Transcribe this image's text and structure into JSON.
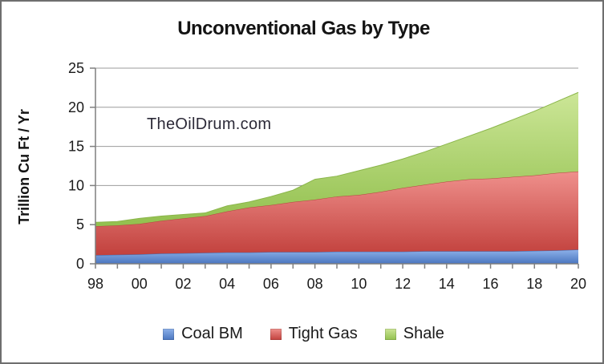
{
  "window": {
    "background": "#ffffff",
    "frame_border_color": "#6e6e6e"
  },
  "watermark": {
    "text": "TheOilDrum.com",
    "color": "#2c2a38"
  },
  "chart_data": {
    "type": "area",
    "stacked": true,
    "title": "Unconventional Gas by Type",
    "ylabel": "Trillion Cu Ft / Yr",
    "xlabel": "",
    "ylim": [
      0,
      25
    ],
    "y_ticks": [
      0,
      5,
      10,
      15,
      20,
      25
    ],
    "grid": true,
    "legend_position": "bottom",
    "x": [
      1998,
      1999,
      2000,
      2001,
      2002,
      2003,
      2004,
      2005,
      2006,
      2007,
      2008,
      2009,
      2010,
      2011,
      2012,
      2013,
      2014,
      2015,
      2016,
      2017,
      2018,
      2019,
      2020
    ],
    "x_tick_labels": [
      "98",
      "00",
      "02",
      "04",
      "06",
      "08",
      "10",
      "12",
      "14",
      "16",
      "18",
      "20"
    ],
    "x_label_every": 2,
    "series": [
      {
        "name": "Coal BM",
        "color": "#4f81bd",
        "gradient_top": "#8db1e9",
        "gradient_bottom": "#4a76bf",
        "edge_color": "#3f69ad",
        "values": [
          1.1,
          1.15,
          1.2,
          1.3,
          1.35,
          1.4,
          1.45,
          1.45,
          1.5,
          1.5,
          1.5,
          1.55,
          1.55,
          1.55,
          1.55,
          1.6,
          1.6,
          1.6,
          1.6,
          1.6,
          1.65,
          1.7,
          1.8
        ]
      },
      {
        "name": "Tight Gas",
        "color": "#c0504d",
        "gradient_top": "#ef908c",
        "gradient_bottom": "#c2413d",
        "edge_color": "#b4423e",
        "values": [
          3.7,
          3.75,
          3.9,
          4.2,
          4.45,
          4.7,
          5.25,
          5.75,
          6.0,
          6.4,
          6.7,
          7.05,
          7.25,
          7.65,
          8.15,
          8.5,
          8.9,
          9.2,
          9.3,
          9.5,
          9.65,
          9.9,
          10.0
        ]
      },
      {
        "name": "Shale",
        "color": "#9bbb59",
        "gradient_top": "#cce697",
        "gradient_bottom": "#92c04e",
        "edge_color": "#8ab54a",
        "values": [
          0.5,
          0.5,
          0.7,
          0.6,
          0.5,
          0.4,
          0.7,
          0.7,
          1.1,
          1.5,
          2.6,
          2.6,
          3.1,
          3.4,
          3.7,
          4.2,
          4.8,
          5.5,
          6.4,
          7.3,
          8.2,
          9.1,
          10.1
        ]
      }
    ],
    "axis_color": "#7f7f7f",
    "grid_color": "#9b9b9b",
    "tick_label_color": "#1a1a1a"
  }
}
